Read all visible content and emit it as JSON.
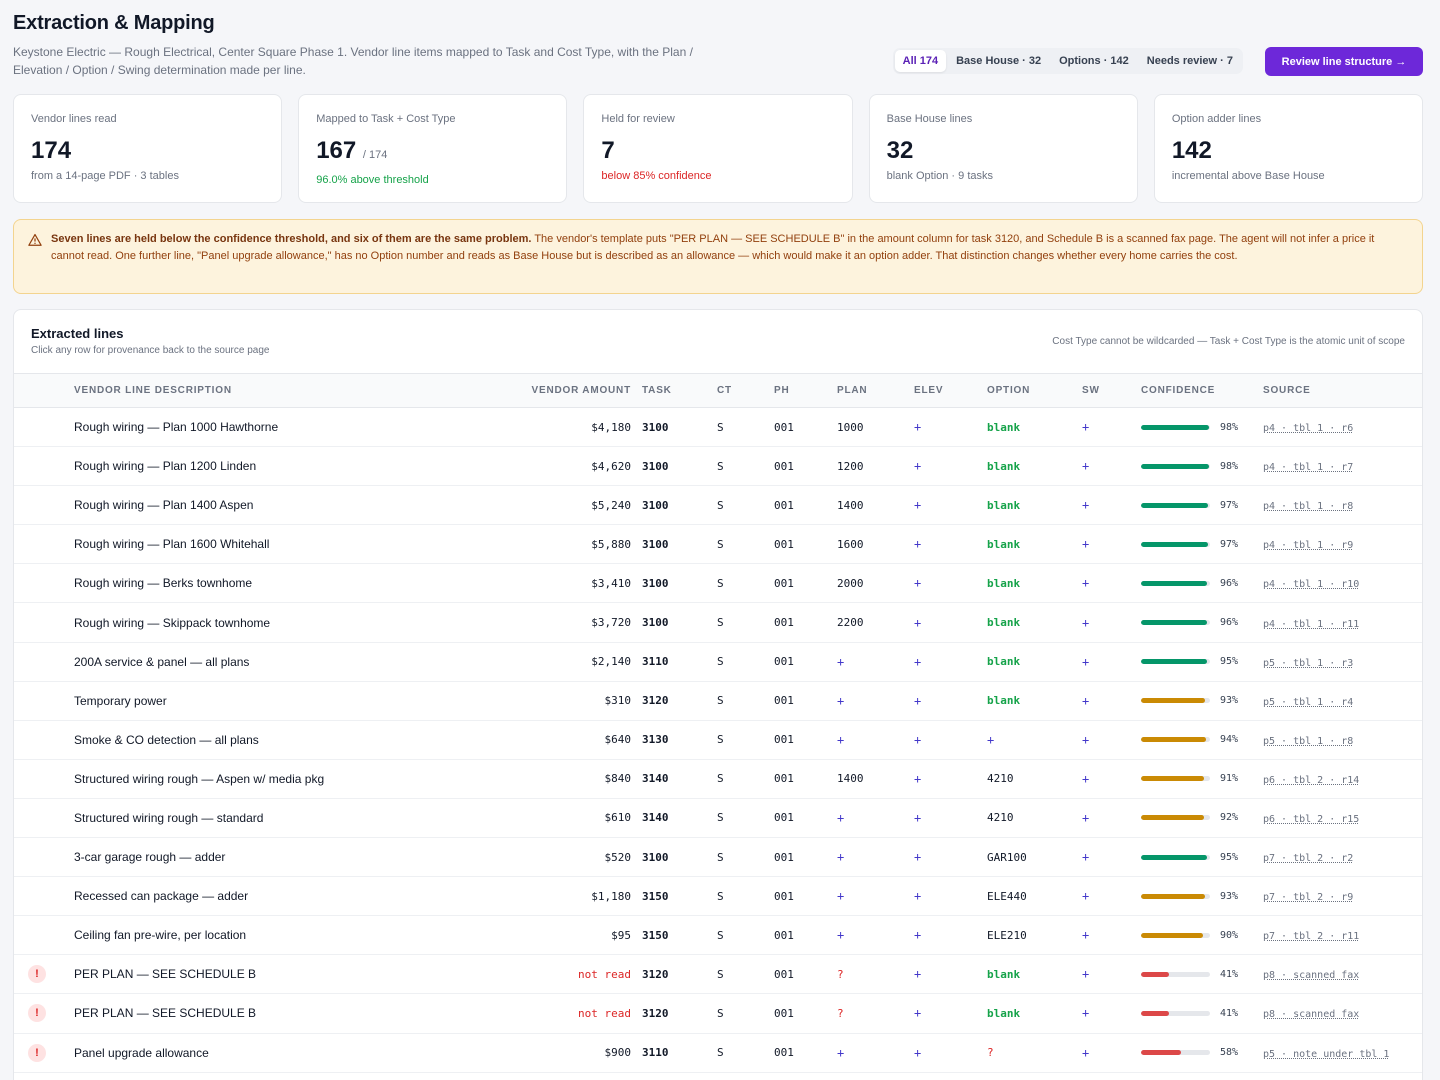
{
  "header": {
    "title": "Extraction & Mapping",
    "subtitle": "Keystone Electric — Rough Electrical, Center Square Phase 1. Vendor line items mapped to Task and Cost Type, with the Plan / Elevation / Option / Swing determination made per line.",
    "filters": [
      "All 174",
      "Base House · 32",
      "Options · 142",
      "Needs review · 7"
    ],
    "active_filter": "All 174",
    "review_button": "Review line structure →"
  },
  "stats": [
    {
      "label": "Vendor lines read",
      "value": "174",
      "denom": "",
      "sub": "from a 14-page PDF · 3 tables",
      "tone": "muted"
    },
    {
      "label": "Mapped to Task + Cost Type",
      "value": "167",
      "denom": "/ 174",
      "sub": "96.0% above threshold",
      "tone": "ok"
    },
    {
      "label": "Held for review",
      "value": "7",
      "denom": "",
      "sub": "below 85% confidence",
      "tone": "bad"
    },
    {
      "label": "Base House lines",
      "value": "32",
      "denom": "",
      "sub": "blank Option · 9 tasks",
      "tone": "muted"
    },
    {
      "label": "Option adder lines",
      "value": "142",
      "denom": "",
      "sub": "incremental above Base House",
      "tone": "muted"
    }
  ],
  "alert": {
    "icon": "warning-triangle-icon",
    "strong": "Seven lines are held below the confidence threshold, and six of them are the same problem.",
    "body": "The vendor's template puts \"PER PLAN — SEE SCHEDULE B\" in the amount column for task 3120, and Schedule B is a scanned fax page. The agent will not infer a price it cannot read. One further line, \"Panel upgrade allowance,\" has no Option number and reads as Base House but is described as an allowance — which would make it an option adder. That distinction changes whether every home carries the cost."
  },
  "table": {
    "title": "Extracted lines",
    "hint": "Click any row for provenance back to the source page",
    "note": "Cost Type cannot be wildcarded — Task + Cost Type is the atomic unit of scope",
    "columns": [
      "",
      "VENDOR LINE DESCRIPTION",
      "VENDOR AMOUNT",
      "TASK",
      "CT",
      "PH",
      "PLAN",
      "ELEV",
      "OPTION",
      "SW",
      "CONFIDENCE",
      "SOURCE"
    ],
    "rows": [
      {
        "flag": "",
        "desc": "Rough wiring — Plan 1000 Hawthorne",
        "amount": "$4,180",
        "task": "3100",
        "ct": "S",
        "ph": "001",
        "plan": "1000",
        "elev": "+",
        "option": "blank",
        "sw": "+",
        "conf": 98,
        "conf_label": "98%",
        "source": "p4 · tbl 1 · r6"
      },
      {
        "flag": "",
        "desc": "Rough wiring — Plan 1200 Linden",
        "amount": "$4,620",
        "task": "3100",
        "ct": "S",
        "ph": "001",
        "plan": "1200",
        "elev": "+",
        "option": "blank",
        "sw": "+",
        "conf": 98,
        "conf_label": "98%",
        "source": "p4 · tbl 1 · r7"
      },
      {
        "flag": "",
        "desc": "Rough wiring — Plan 1400 Aspen",
        "amount": "$5,240",
        "task": "3100",
        "ct": "S",
        "ph": "001",
        "plan": "1400",
        "elev": "+",
        "option": "blank",
        "sw": "+",
        "conf": 97,
        "conf_label": "97%",
        "source": "p4 · tbl 1 · r8"
      },
      {
        "flag": "",
        "desc": "Rough wiring — Plan 1600 Whitehall",
        "amount": "$5,880",
        "task": "3100",
        "ct": "S",
        "ph": "001",
        "plan": "1600",
        "elev": "+",
        "option": "blank",
        "sw": "+",
        "conf": 97,
        "conf_label": "97%",
        "source": "p4 · tbl 1 · r9"
      },
      {
        "flag": "",
        "desc": "Rough wiring — Berks townhome",
        "amount": "$3,410",
        "task": "3100",
        "ct": "S",
        "ph": "001",
        "plan": "2000",
        "elev": "+",
        "option": "blank",
        "sw": "+",
        "conf": 96,
        "conf_label": "96%",
        "source": "p4 · tbl 1 · r10"
      },
      {
        "flag": "",
        "desc": "Rough wiring — Skippack townhome",
        "amount": "$3,720",
        "task": "3100",
        "ct": "S",
        "ph": "001",
        "plan": "2200",
        "elev": "+",
        "option": "blank",
        "sw": "+",
        "conf": 96,
        "conf_label": "96%",
        "source": "p4 · tbl 1 · r11"
      },
      {
        "flag": "",
        "desc": "200A service & panel — all plans",
        "amount": "$2,140",
        "task": "3110",
        "ct": "S",
        "ph": "001",
        "plan": "+",
        "elev": "+",
        "option": "blank",
        "sw": "+",
        "conf": 95,
        "conf_label": "95%",
        "source": "p5 · tbl 1 · r3"
      },
      {
        "flag": "",
        "desc": "Temporary power",
        "amount": "$310",
        "task": "3120",
        "ct": "S",
        "ph": "001",
        "plan": "+",
        "elev": "+",
        "option": "blank",
        "sw": "+",
        "conf": 93,
        "conf_label": "93%",
        "source": "p5 · tbl 1 · r4"
      },
      {
        "flag": "",
        "desc": "Smoke & CO detection — all plans",
        "amount": "$640",
        "task": "3130",
        "ct": "S",
        "ph": "001",
        "plan": "+",
        "elev": "+",
        "option": "+",
        "sw": "+",
        "conf": 94,
        "conf_label": "94%",
        "source": "p5 · tbl 1 · r8"
      },
      {
        "flag": "",
        "desc": "Structured wiring rough — Aspen w/ media pkg",
        "amount": "$840",
        "task": "3140",
        "ct": "S",
        "ph": "001",
        "plan": "1400",
        "elev": "+",
        "option": "4210",
        "sw": "+",
        "conf": 91,
        "conf_label": "91%",
        "source": "p6 · tbl 2 · r14"
      },
      {
        "flag": "",
        "desc": "Structured wiring rough — standard",
        "amount": "$610",
        "task": "3140",
        "ct": "S",
        "ph": "001",
        "plan": "+",
        "elev": "+",
        "option": "4210",
        "sw": "+",
        "conf": 92,
        "conf_label": "92%",
        "source": "p6 · tbl 2 · r15"
      },
      {
        "flag": "",
        "desc": "3-car garage rough — adder",
        "amount": "$520",
        "task": "3100",
        "ct": "S",
        "ph": "001",
        "plan": "+",
        "elev": "+",
        "option": "GAR100",
        "sw": "+",
        "conf": 95,
        "conf_label": "95%",
        "source": "p7 · tbl 2 · r2"
      },
      {
        "flag": "",
        "desc": "Recessed can package — adder",
        "amount": "$1,180",
        "task": "3150",
        "ct": "S",
        "ph": "001",
        "plan": "+",
        "elev": "+",
        "option": "ELE440",
        "sw": "+",
        "conf": 93,
        "conf_label": "93%",
        "source": "p7 · tbl 2 · r9"
      },
      {
        "flag": "",
        "desc": "Ceiling fan pre-wire, per location",
        "amount": "$95",
        "task": "3150",
        "ct": "S",
        "ph": "001",
        "plan": "+",
        "elev": "+",
        "option": "ELE210",
        "sw": "+",
        "conf": 90,
        "conf_label": "90%",
        "source": "p7 · tbl 2 · r11"
      },
      {
        "flag": "!",
        "desc": "PER PLAN — SEE SCHEDULE B",
        "amount": "not read",
        "task": "3120",
        "ct": "S",
        "ph": "001",
        "plan": "?",
        "elev": "+",
        "option": "blank",
        "sw": "+",
        "conf": 41,
        "conf_label": "41%",
        "source": "p8 · scanned fax"
      },
      {
        "flag": "!",
        "desc": "PER PLAN — SEE SCHEDULE B",
        "amount": "not read",
        "task": "3120",
        "ct": "S",
        "ph": "001",
        "plan": "?",
        "elev": "+",
        "option": "blank",
        "sw": "+",
        "conf": 41,
        "conf_label": "41%",
        "source": "p8 · scanned fax"
      },
      {
        "flag": "!",
        "desc": "Panel upgrade allowance",
        "amount": "$900",
        "task": "3110",
        "ct": "S",
        "ph": "001",
        "plan": "+",
        "elev": "+",
        "option": "?",
        "sw": "+",
        "conf": 58,
        "conf_label": "58%",
        "source": "p5 · note under tbl 1"
      }
    ]
  },
  "colors": {
    "accent": "#6d28d9",
    "conf_high": "#059669",
    "conf_mid": "#ca8a04",
    "conf_low": "#dc4848",
    "ok": "#16a34a",
    "bad": "#dc2626"
  }
}
